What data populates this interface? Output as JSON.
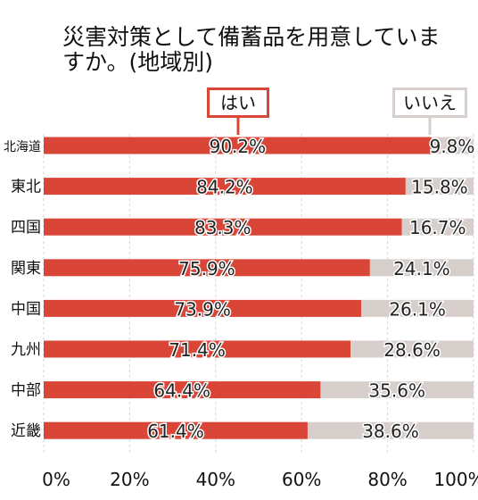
{
  "chart_data": {
    "type": "bar",
    "orientation": "horizontal",
    "stacked": true,
    "title": "災害対策として備蓄品を用意していますか。(地域別)",
    "categories": [
      "北海道",
      "東北",
      "四国",
      "関東",
      "中国",
      "九州",
      "中部",
      "近畿"
    ],
    "series": [
      {
        "name": "はい",
        "values": [
          90.2,
          84.2,
          83.3,
          75.9,
          73.9,
          71.4,
          64.4,
          61.4
        ],
        "color": "#d94537"
      },
      {
        "name": "いいえ",
        "values": [
          9.8,
          15.8,
          16.7,
          24.1,
          26.1,
          28.6,
          35.6,
          38.6
        ],
        "color": "#d7cfcc"
      }
    ],
    "xlim": [
      0,
      100
    ],
    "xticks": [
      "0%",
      "20%",
      "40%",
      "60%",
      "80%",
      "100%"
    ],
    "grid": "vertical dashed",
    "legend_position": "top"
  }
}
